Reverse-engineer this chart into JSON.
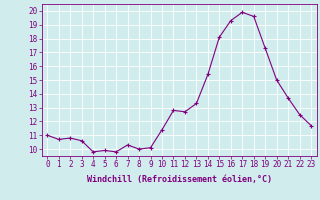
{
  "x": [
    0,
    1,
    2,
    3,
    4,
    5,
    6,
    7,
    8,
    9,
    10,
    11,
    12,
    13,
    14,
    15,
    16,
    17,
    18,
    19,
    20,
    21,
    22,
    23
  ],
  "y": [
    11.0,
    10.7,
    10.8,
    10.6,
    9.8,
    9.9,
    9.8,
    10.3,
    10.0,
    10.1,
    11.4,
    12.8,
    12.7,
    13.3,
    15.4,
    18.1,
    19.3,
    19.9,
    19.6,
    17.3,
    15.0,
    13.7,
    12.5,
    11.7
  ],
  "line_color": "#800080",
  "marker": "+",
  "marker_color": "#800080",
  "bg_color": "#d0ecec",
  "grid_color": "#ffffff",
  "xlabel": "Windchill (Refroidissement éolien,°C)",
  "xlim": [
    -0.5,
    23.5
  ],
  "ylim": [
    9.5,
    20.5
  ],
  "yticks": [
    10,
    11,
    12,
    13,
    14,
    15,
    16,
    17,
    18,
    19,
    20
  ],
  "xticks": [
    0,
    1,
    2,
    3,
    4,
    5,
    6,
    7,
    8,
    9,
    10,
    11,
    12,
    13,
    14,
    15,
    16,
    17,
    18,
    19,
    20,
    21,
    22,
    23
  ],
  "xlabel_color": "#800080",
  "tick_color": "#800080",
  "tick_fontsize": 5.5,
  "xlabel_fontsize": 6.0
}
